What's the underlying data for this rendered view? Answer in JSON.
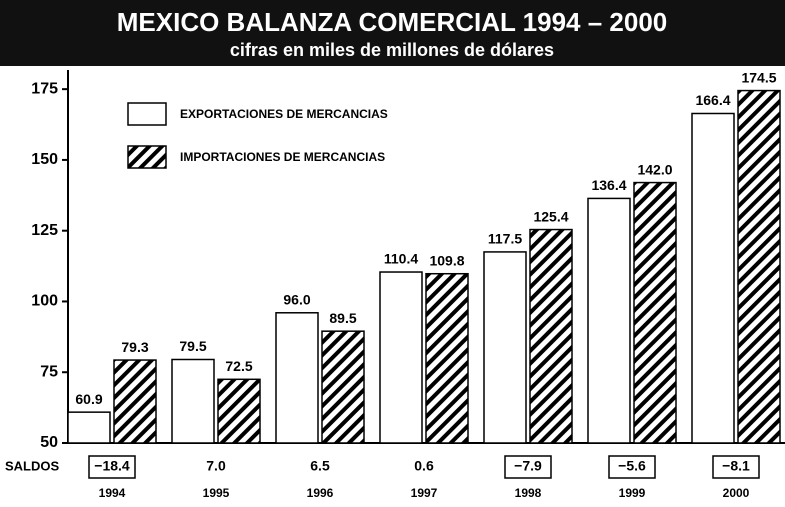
{
  "chart_data": {
    "type": "bar",
    "title": "MEXICO  BALANZA COMERCIAL 1994 – 2000",
    "subtitle": "cifras en miles de millones de dólares",
    "categories": [
      "1994",
      "1995",
      "1996",
      "1997",
      "1998",
      "1999",
      "2000"
    ],
    "series": [
      {
        "name": "EXPORTACIONES DE MERCANCIAS",
        "color": "#ffffff",
        "hatch": false,
        "values": [
          60.9,
          79.5,
          96.0,
          110.4,
          117.5,
          136.4,
          166.4
        ],
        "value_labels": [
          "60.9",
          "79.5",
          "96.0",
          "110.4",
          "117.5",
          "136.4",
          "166.4"
        ]
      },
      {
        "name": "IMPORTACIONES DE MERCANCIAS",
        "color": "#000000",
        "hatch": true,
        "values": [
          79.3,
          72.5,
          89.5,
          109.8,
          125.4,
          142.0,
          174.5
        ],
        "value_labels": [
          "79.3",
          "72.5",
          "89.5",
          "109.8",
          "125.4",
          "142.0",
          "174.5"
        ]
      }
    ],
    "saldos": {
      "label": "SALDOS",
      "values": [
        -18.4,
        7.0,
        6.5,
        0.6,
        -7.9,
        -5.6,
        -8.1
      ],
      "value_labels": [
        "−18.4",
        "7.0",
        "6.5",
        "0.6",
        "−7.9",
        "−5.6",
        "−8.1"
      ]
    },
    "ylim": [
      50,
      180
    ],
    "yticks": [
      50,
      75,
      100,
      125,
      150,
      175
    ],
    "grid": false,
    "legend": "top-left"
  }
}
